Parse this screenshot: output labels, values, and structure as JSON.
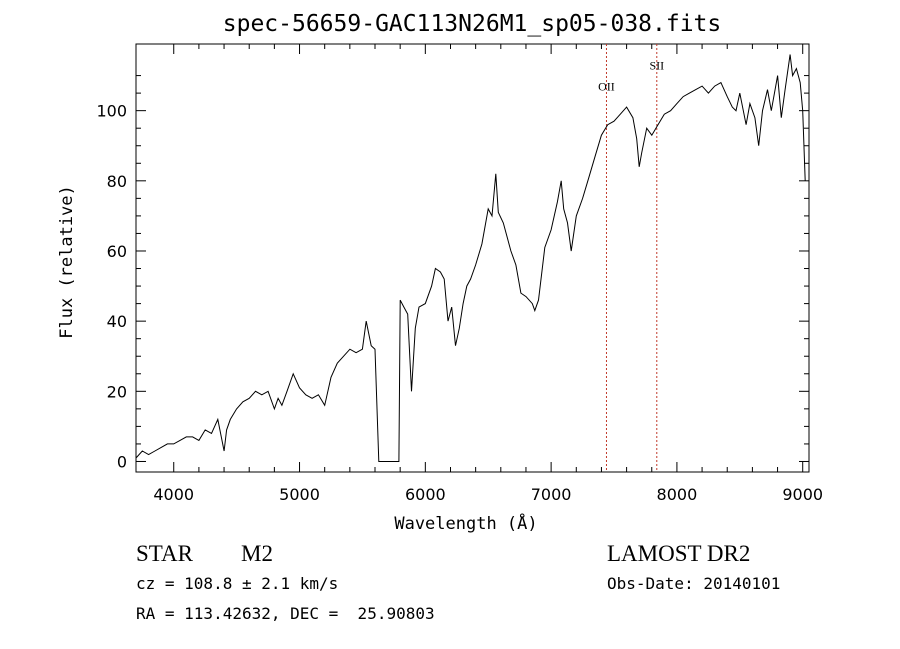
{
  "chart_data": {
    "type": "line",
    "title": "spec-56659-GAC113N26M1_sp05-038.fits",
    "xlabel": "Wavelength (Å)",
    "ylabel": "Flux (relative)",
    "xlim": [
      3700,
      9050
    ],
    "ylim": [
      -3,
      119
    ],
    "x_ticks": [
      4000,
      5000,
      6000,
      7000,
      8000,
      9000
    ],
    "y_ticks": [
      0,
      20,
      40,
      60,
      80,
      100
    ],
    "grid": false,
    "series": [
      {
        "color": "#000000",
        "points": [
          [
            3700,
            1
          ],
          [
            3750,
            3
          ],
          [
            3800,
            2
          ],
          [
            3850,
            3
          ],
          [
            3900,
            4
          ],
          [
            3950,
            5
          ],
          [
            4000,
            5
          ],
          [
            4050,
            6
          ],
          [
            4100,
            7
          ],
          [
            4150,
            7
          ],
          [
            4200,
            6
          ],
          [
            4250,
            9
          ],
          [
            4300,
            8
          ],
          [
            4350,
            12
          ],
          [
            4400,
            3
          ],
          [
            4420,
            9
          ],
          [
            4450,
            12
          ],
          [
            4500,
            15
          ],
          [
            4550,
            17
          ],
          [
            4600,
            18
          ],
          [
            4650,
            20
          ],
          [
            4700,
            19
          ],
          [
            4750,
            20
          ],
          [
            4800,
            15
          ],
          [
            4830,
            18
          ],
          [
            4860,
            16
          ],
          [
            4900,
            20
          ],
          [
            4950,
            25
          ],
          [
            5000,
            21
          ],
          [
            5050,
            19
          ],
          [
            5100,
            18
          ],
          [
            5150,
            19
          ],
          [
            5200,
            16
          ],
          [
            5250,
            24
          ],
          [
            5300,
            28
          ],
          [
            5350,
            30
          ],
          [
            5400,
            32
          ],
          [
            5450,
            31
          ],
          [
            5500,
            32
          ],
          [
            5530,
            40
          ],
          [
            5570,
            33
          ],
          [
            5600,
            32
          ],
          [
            5630,
            0
          ],
          [
            5700,
            0
          ],
          [
            5790,
            0
          ],
          [
            5800,
            46
          ],
          [
            5830,
            44
          ],
          [
            5860,
            42
          ],
          [
            5890,
            20
          ],
          [
            5920,
            38
          ],
          [
            5950,
            44
          ],
          [
            6000,
            45
          ],
          [
            6050,
            50
          ],
          [
            6080,
            55
          ],
          [
            6120,
            54
          ],
          [
            6150,
            52
          ],
          [
            6180,
            40
          ],
          [
            6210,
            44
          ],
          [
            6240,
            33
          ],
          [
            6270,
            38
          ],
          [
            6300,
            45
          ],
          [
            6330,
            50
          ],
          [
            6360,
            52
          ],
          [
            6400,
            56
          ],
          [
            6450,
            62
          ],
          [
            6500,
            72
          ],
          [
            6530,
            70
          ],
          [
            6560,
            82
          ],
          [
            6580,
            71
          ],
          [
            6620,
            68
          ],
          [
            6680,
            60
          ],
          [
            6720,
            56
          ],
          [
            6760,
            48
          ],
          [
            6800,
            47
          ],
          [
            6850,
            45
          ],
          [
            6870,
            43
          ],
          [
            6900,
            46
          ],
          [
            6950,
            61
          ],
          [
            7000,
            66
          ],
          [
            7050,
            74
          ],
          [
            7080,
            80
          ],
          [
            7100,
            72
          ],
          [
            7130,
            68
          ],
          [
            7160,
            60
          ],
          [
            7200,
            70
          ],
          [
            7250,
            75
          ],
          [
            7300,
            81
          ],
          [
            7350,
            87
          ],
          [
            7400,
            93
          ],
          [
            7450,
            96
          ],
          [
            7500,
            97
          ],
          [
            7550,
            99
          ],
          [
            7600,
            101
          ],
          [
            7650,
            98
          ],
          [
            7680,
            92
          ],
          [
            7700,
            84
          ],
          [
            7720,
            88
          ],
          [
            7760,
            95
          ],
          [
            7800,
            93
          ],
          [
            7850,
            96
          ],
          [
            7900,
            99
          ],
          [
            7950,
            100
          ],
          [
            8000,
            102
          ],
          [
            8050,
            104
          ],
          [
            8100,
            105
          ],
          [
            8150,
            106
          ],
          [
            8200,
            107
          ],
          [
            8250,
            105
          ],
          [
            8300,
            107
          ],
          [
            8350,
            108
          ],
          [
            8400,
            104
          ],
          [
            8440,
            101
          ],
          [
            8470,
            100
          ],
          [
            8500,
            105
          ],
          [
            8550,
            96
          ],
          [
            8580,
            102
          ],
          [
            8620,
            98
          ],
          [
            8650,
            90
          ],
          [
            8680,
            100
          ],
          [
            8720,
            106
          ],
          [
            8750,
            100
          ],
          [
            8800,
            110
          ],
          [
            8830,
            98
          ],
          [
            8860,
            106
          ],
          [
            8900,
            116
          ],
          [
            8920,
            110
          ],
          [
            8950,
            112
          ],
          [
            8980,
            108
          ],
          [
            9000,
            100
          ],
          [
            9020,
            80
          ]
        ]
      }
    ],
    "annotations": [
      {
        "label": "OII",
        "x": 7440,
        "y": 104,
        "line_color": "#c0392b"
      },
      {
        "label": "SII",
        "x": 7840,
        "y": 110,
        "line_color": "#c0392b"
      }
    ],
    "info": {
      "class_type": "STAR",
      "subclass": "M2",
      "survey": "LAMOST DR2",
      "cz": "cz = 108.8 ± 2.1 km/s",
      "obs_date": "Obs-Date: 20140101",
      "coords": "RA = 113.42632, DEC =  25.90803"
    }
  }
}
